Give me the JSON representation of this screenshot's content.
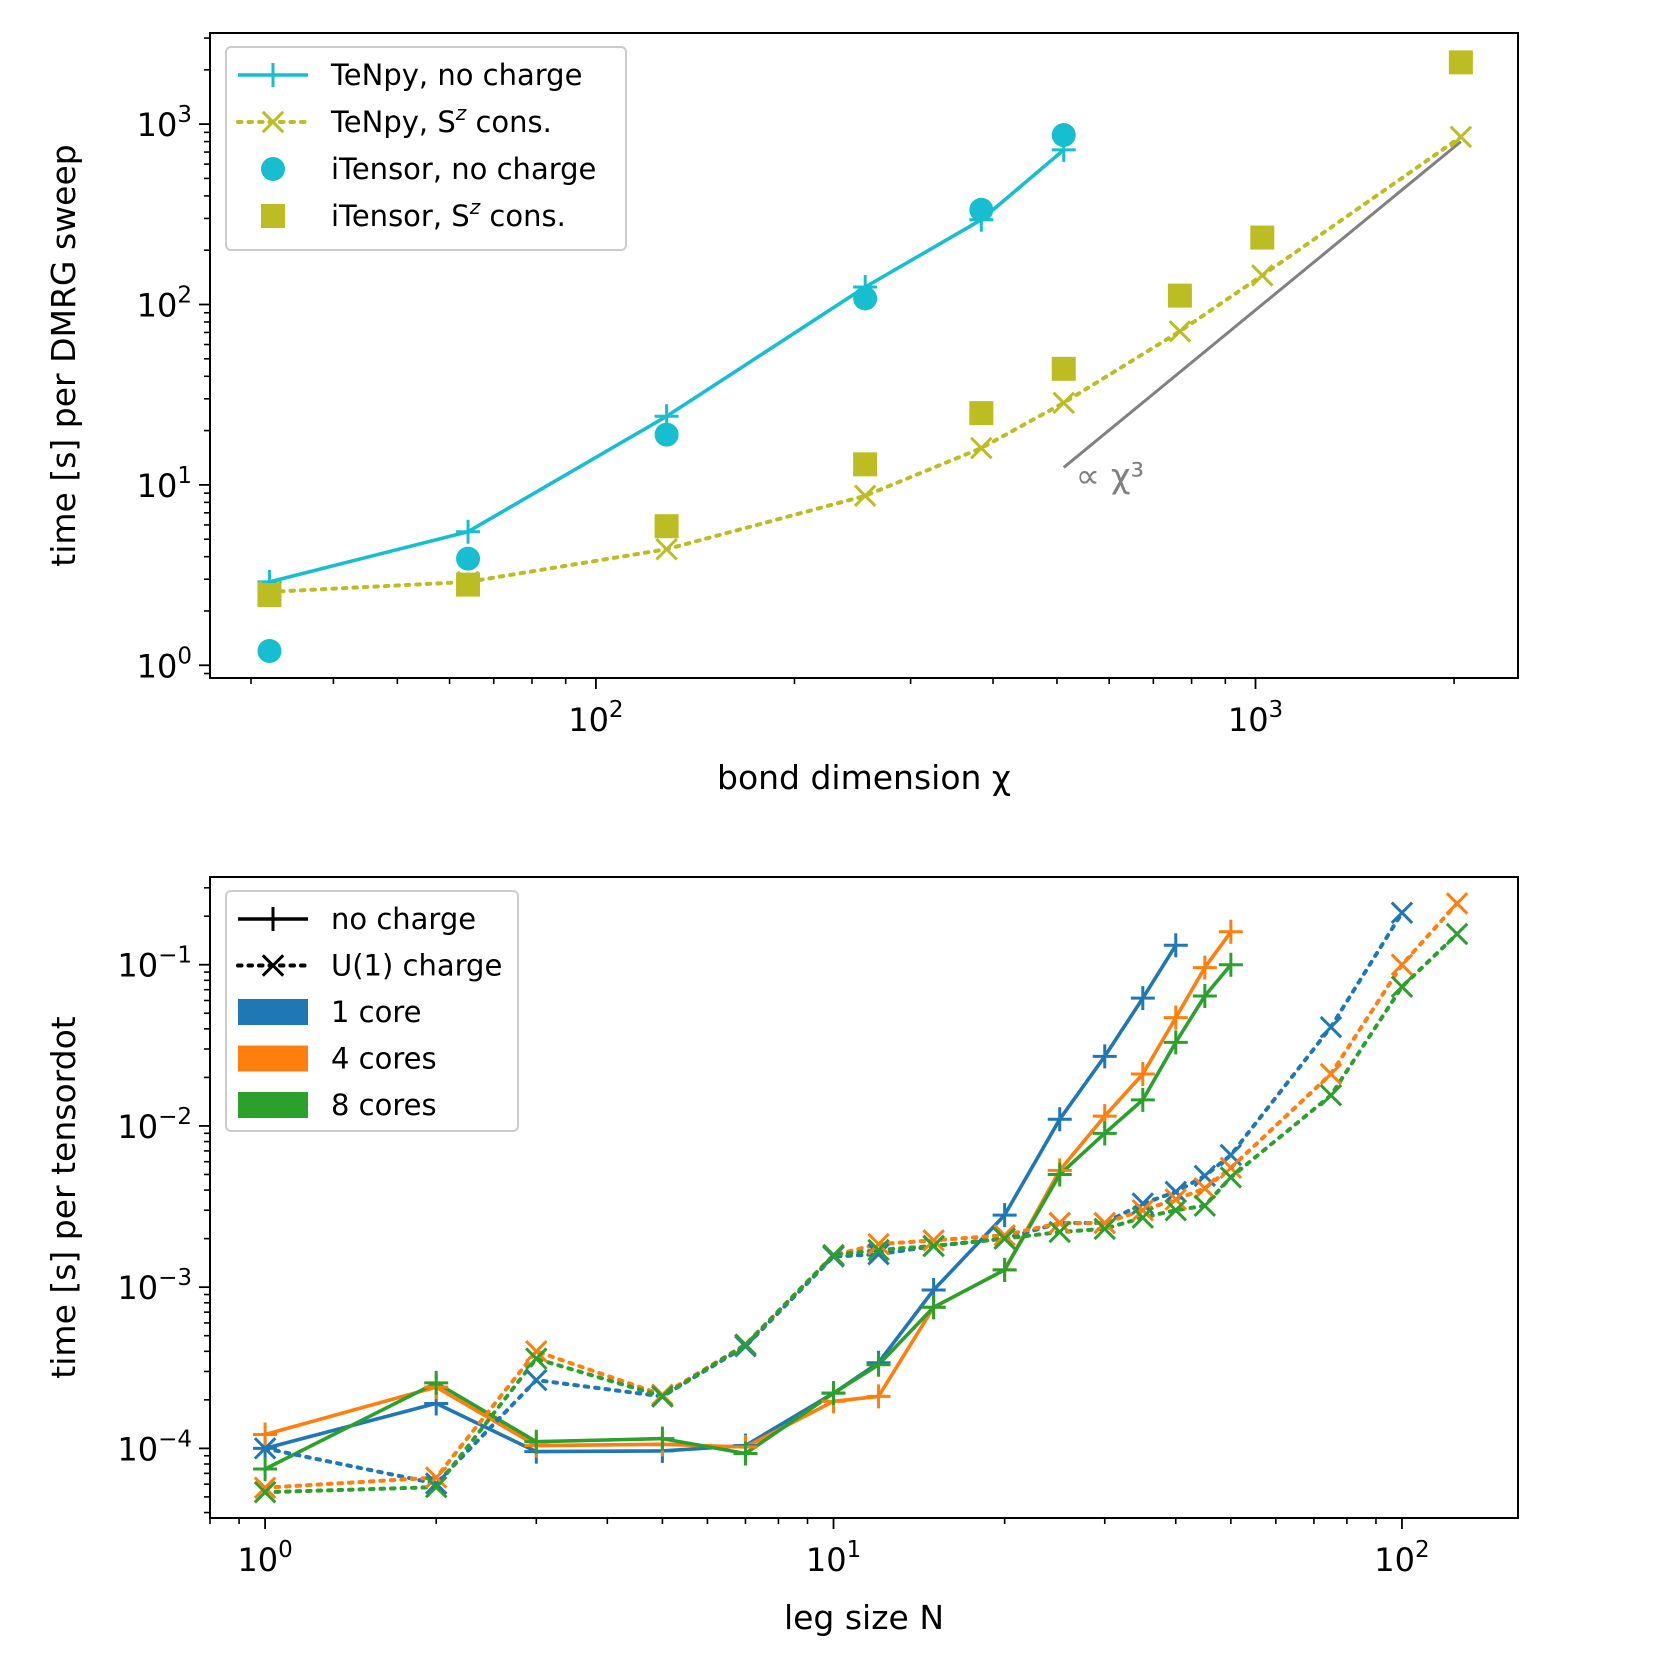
{
  "chart_data": [
    {
      "type": "line",
      "xlabel": "bond dimension χ",
      "ylabel": "time [s] per DMRG sweep",
      "xscale": "log",
      "yscale": "log",
      "xlim": [
        26,
        2500
      ],
      "ylim": [
        0.85,
        3200
      ],
      "xticks": [
        {
          "value": 100,
          "base": "10",
          "exp": "2"
        },
        {
          "value": 1000,
          "base": "10",
          "exp": "3"
        }
      ],
      "yticks": [
        {
          "value": 1,
          "base": "10",
          "exp": "0"
        },
        {
          "value": 10,
          "base": "10",
          "exp": "1"
        },
        {
          "value": 100,
          "base": "10",
          "exp": "2"
        },
        {
          "value": 1000,
          "base": "10",
          "exp": "3"
        }
      ],
      "legend_position": "top-left",
      "series": [
        {
          "name": "TeNpy, no charge",
          "name_main": "TeNpy, no charge",
          "name_sup": "",
          "name_tail": "",
          "color": "#17becf",
          "line": "solid",
          "marker": "plus",
          "x": [
            32,
            64,
            128,
            256,
            384,
            512
          ],
          "y": [
            2.9,
            5.5,
            24,
            125,
            295,
            720
          ]
        },
        {
          "name": "TeNpy, Sz cons.",
          "name_main": "TeNpy, S",
          "name_sup": "z",
          "name_tail": " cons.",
          "color": "#bcbd22",
          "line": "dotted",
          "marker": "x",
          "x": [
            32,
            64,
            128,
            256,
            384,
            512,
            768,
            1024,
            2048
          ],
          "y": [
            2.55,
            2.9,
            4.4,
            8.7,
            16,
            28.5,
            71,
            145,
            850
          ]
        },
        {
          "name": "iTensor, no charge",
          "name_main": "iTensor, no charge",
          "name_sup": "",
          "name_tail": "",
          "color": "#17becf",
          "line": "none",
          "marker": "circle",
          "x": [
            32,
            64,
            128,
            256,
            384,
            512
          ],
          "y": [
            1.2,
            3.9,
            19,
            108,
            335,
            870
          ]
        },
        {
          "name": "iTensor, Sz cons.",
          "name_main": "iTensor, S",
          "name_sup": "z",
          "name_tail": " cons.",
          "color": "#bcbd22",
          "line": "none",
          "marker": "square",
          "x": [
            32,
            64,
            128,
            256,
            384,
            512,
            768,
            1024,
            2048
          ],
          "y": [
            2.45,
            2.8,
            5.9,
            13,
            25,
            44,
            112,
            235,
            2200
          ]
        }
      ],
      "reference_line": {
        "label": "∝ χ³",
        "color": "#808080",
        "x": [
          512,
          2048
        ],
        "y": [
          12.5,
          800
        ]
      }
    },
    {
      "type": "line",
      "xlabel": "leg size N",
      "ylabel": "time [s] per tensordot",
      "xscale": "log",
      "yscale": "log",
      "xlim": [
        0.8,
        160
      ],
      "ylim": [
        3.7e-05,
        0.35
      ],
      "xticks": [
        {
          "value": 1,
          "base": "10",
          "exp": "0"
        },
        {
          "value": 10,
          "base": "10",
          "exp": "1"
        },
        {
          "value": 100,
          "base": "10",
          "exp": "2"
        }
      ],
      "yticks": [
        {
          "value": 0.0001,
          "base": "10",
          "exp": "−4"
        },
        {
          "value": 0.001,
          "base": "10",
          "exp": "−3"
        },
        {
          "value": 0.01,
          "base": "10",
          "exp": "−2"
        },
        {
          "value": 0.1,
          "base": "10",
          "exp": "−1"
        }
      ],
      "legend_position": "top-left",
      "legend": [
        {
          "label": "no charge",
          "kind": "line",
          "line": "solid",
          "marker": "plus",
          "color": "#000000"
        },
        {
          "label": "U(1) charge",
          "kind": "line",
          "line": "dotted",
          "marker": "x",
          "color": "#000000"
        },
        {
          "label": "1 core",
          "kind": "patch",
          "color": "#1f77b4"
        },
        {
          "label": "4 cores",
          "kind": "patch",
          "color": "#ff7f0e"
        },
        {
          "label": "8 cores",
          "kind": "patch",
          "color": "#2ca02c"
        }
      ],
      "series": [
        {
          "name": "",
          "label": "no charge, 1 core",
          "color": "#1f77b4",
          "line": "solid",
          "marker": "plus",
          "x": [
            1,
            2,
            3,
            5,
            7,
            10,
            12,
            15,
            20,
            25,
            30,
            35,
            40
          ],
          "y": [
            0.0001,
            0.00019,
            9.55e-05,
            9.65e-05,
            0.000104,
            0.00022,
            0.00034,
            0.00096,
            0.0028,
            0.011,
            0.027,
            0.062,
            0.132
          ]
        },
        {
          "name": "",
          "label": "no charge, 4 cores",
          "color": "#ff7f0e",
          "line": "solid",
          "marker": "plus",
          "x": [
            1,
            2,
            3,
            5,
            7,
            10,
            12,
            15,
            20,
            25,
            30,
            35,
            40,
            45,
            50
          ],
          "y": [
            0.000122,
            0.00024,
            0.000104,
            0.000106,
            0.000102,
            0.000196,
            0.00021,
            0.00075,
            0.00128,
            0.0053,
            0.0115,
            0.021,
            0.047,
            0.096,
            0.16
          ]
        },
        {
          "name": "",
          "label": "no charge, 8 cores",
          "color": "#2ca02c",
          "line": "solid",
          "marker": "plus",
          "x": [
            1,
            2,
            3,
            5,
            7,
            10,
            12,
            15,
            20,
            25,
            30,
            35,
            40,
            45,
            50
          ],
          "y": [
            7.45e-05,
            0.000255,
            0.00011,
            0.000115,
            9.3e-05,
            0.00022,
            0.00033,
            0.00075,
            0.00128,
            0.005,
            0.009,
            0.0145,
            0.033,
            0.064,
            0.1
          ]
        },
        {
          "name": "",
          "label": "U(1) charge, 1 core",
          "color": "#1f77b4",
          "line": "dotted",
          "marker": "x",
          "x": [
            1,
            2,
            3,
            5,
            7,
            10,
            12,
            15,
            20,
            25,
            30,
            35,
            40,
            45,
            50,
            75,
            100
          ],
          "y": [
            0.0001,
            6.05e-05,
            0.000265,
            0.00021,
            0.00043,
            0.00155,
            0.0016,
            0.0018,
            0.002,
            0.0025,
            0.0025,
            0.0033,
            0.0039,
            0.0049,
            0.0066,
            0.041,
            0.21
          ]
        },
        {
          "name": "",
          "label": "U(1) charge, 4 cores",
          "color": "#ff7f0e",
          "line": "dotted",
          "marker": "x",
          "x": [
            1,
            2,
            3,
            5,
            7,
            10,
            12,
            15,
            20,
            25,
            30,
            35,
            40,
            45,
            50,
            75,
            100,
            125
          ],
          "y": [
            5.7e-05,
            6.6e-05,
            0.0004,
            0.000215,
            0.00044,
            0.00158,
            0.00185,
            0.00195,
            0.0021,
            0.0025,
            0.0025,
            0.003,
            0.0035,
            0.0041,
            0.0055,
            0.021,
            0.1,
            0.24
          ]
        },
        {
          "name": "",
          "label": "U(1) charge, 8 cores",
          "color": "#2ca02c",
          "line": "dotted",
          "marker": "x",
          "x": [
            1,
            2,
            3,
            5,
            7,
            10,
            12,
            15,
            20,
            25,
            30,
            35,
            40,
            45,
            50,
            75,
            100,
            125
          ],
          "y": [
            5.35e-05,
            5.75e-05,
            0.00036,
            0.00021,
            0.00044,
            0.00158,
            0.0017,
            0.0018,
            0.002,
            0.0022,
            0.0023,
            0.0027,
            0.003,
            0.0032,
            0.0048,
            0.0155,
            0.073,
            0.155
          ]
        }
      ]
    }
  ]
}
